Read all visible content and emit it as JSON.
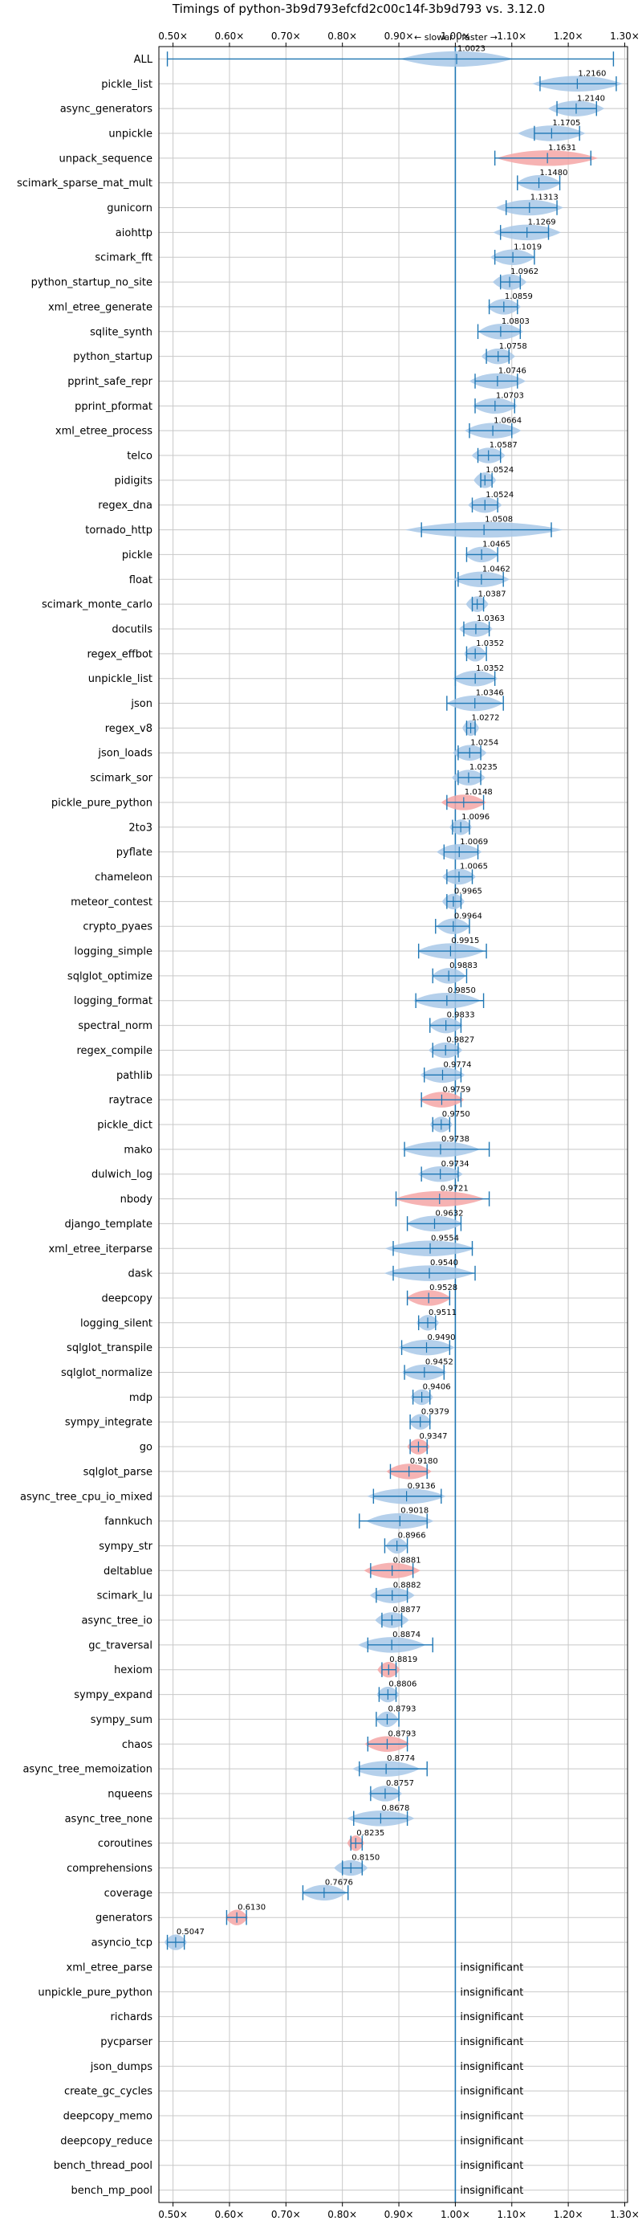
{
  "chart_data": {
    "type": "violin",
    "title": "Timings of python-3b9d793efcfd2c00c14f-3b9d793 vs. 3.12.0",
    "axis_note": "← slower | faster →",
    "xlim": [
      0.475,
      1.305
    ],
    "x_ticks": [
      0.5,
      0.6,
      0.7,
      0.8,
      0.9,
      1.0,
      1.1,
      1.2,
      1.3
    ],
    "x_tick_labels": [
      "0.50×",
      "0.60×",
      "0.70×",
      "0.80×",
      "0.90×",
      "1.00×",
      "1.10×",
      "1.20×",
      "1.30×"
    ],
    "grid": true,
    "colors": {
      "significant": "#a8c8e8",
      "regression": "#f4a6a6",
      "whisker": "#1f77b4",
      "reference": "#1f77b4",
      "grid": "#c8c8c8"
    },
    "insignificant_label": "insignificant",
    "benchmarks": [
      {
        "name": "ALL",
        "value": 1.0023,
        "label": "1.0023",
        "lo": 0.49,
        "hi": 1.28,
        "color": "blue",
        "spread": 0.1
      },
      {
        "name": "pickle_list",
        "value": 1.216,
        "label": "1.2160",
        "lo": 1.15,
        "hi": 1.285,
        "color": "blue",
        "spread": 0.08
      },
      {
        "name": "async_generators",
        "value": 1.214,
        "label": "1.2140",
        "lo": 1.18,
        "hi": 1.25,
        "color": "blue",
        "spread": 0.05
      },
      {
        "name": "unpickle",
        "value": 1.1705,
        "label": "1.1705",
        "lo": 1.14,
        "hi": 1.22,
        "color": "blue",
        "spread": 0.06
      },
      {
        "name": "unpack_sequence",
        "value": 1.1631,
        "label": "1.1631",
        "lo": 1.07,
        "hi": 1.24,
        "color": "red",
        "spread": 0.09
      },
      {
        "name": "scimark_sparse_mat_mult",
        "value": 1.148,
        "label": "1.1480",
        "lo": 1.11,
        "hi": 1.185,
        "color": "blue",
        "spread": 0.04
      },
      {
        "name": "gunicorn",
        "value": 1.1313,
        "label": "1.1313",
        "lo": 1.09,
        "hi": 1.18,
        "color": "blue",
        "spread": 0.06
      },
      {
        "name": "aiohttp",
        "value": 1.1269,
        "label": "1.1269",
        "lo": 1.08,
        "hi": 1.165,
        "color": "blue",
        "spread": 0.06
      },
      {
        "name": "scimark_fft",
        "value": 1.1019,
        "label": "1.1019",
        "lo": 1.07,
        "hi": 1.14,
        "color": "blue",
        "spread": 0.04
      },
      {
        "name": "python_startup_no_site",
        "value": 1.0962,
        "label": "1.0962",
        "lo": 1.08,
        "hi": 1.115,
        "color": "blue",
        "spread": 0.03
      },
      {
        "name": "xml_etree_generate",
        "value": 1.0859,
        "label": "1.0859",
        "lo": 1.06,
        "hi": 1.11,
        "color": "blue",
        "spread": 0.03
      },
      {
        "name": "sqlite_synth",
        "value": 1.0803,
        "label": "1.0803",
        "lo": 1.04,
        "hi": 1.115,
        "color": "blue",
        "spread": 0.04
      },
      {
        "name": "python_startup",
        "value": 1.0758,
        "label": "1.0758",
        "lo": 1.055,
        "hi": 1.095,
        "color": "blue",
        "spread": 0.03
      },
      {
        "name": "pprint_safe_repr",
        "value": 1.0746,
        "label": "1.0746",
        "lo": 1.035,
        "hi": 1.11,
        "color": "blue",
        "spread": 0.05
      },
      {
        "name": "pprint_pformat",
        "value": 1.0703,
        "label": "1.0703",
        "lo": 1.035,
        "hi": 1.105,
        "color": "blue",
        "spread": 0.04
      },
      {
        "name": "xml_etree_process",
        "value": 1.0664,
        "label": "1.0664",
        "lo": 1.025,
        "hi": 1.1,
        "color": "blue",
        "spread": 0.05
      },
      {
        "name": "telco",
        "value": 1.0587,
        "label": "1.0587",
        "lo": 1.04,
        "hi": 1.08,
        "color": "blue",
        "spread": 0.03
      },
      {
        "name": "pidigits",
        "value": 1.0524,
        "label": "1.0524",
        "lo": 1.045,
        "hi": 1.065,
        "color": "blue",
        "spread": 0.02
      },
      {
        "name": "regex_dna",
        "value": 1.0524,
        "label": "1.0524",
        "lo": 1.03,
        "hi": 1.075,
        "color": "blue",
        "spread": 0.03
      },
      {
        "name": "tornado_http",
        "value": 1.0508,
        "label": "1.0508",
        "lo": 0.94,
        "hi": 1.17,
        "color": "blue",
        "spread": 0.14
      },
      {
        "name": "pickle",
        "value": 1.0465,
        "label": "1.0465",
        "lo": 1.02,
        "hi": 1.075,
        "color": "blue",
        "spread": 0.03
      },
      {
        "name": "float",
        "value": 1.0462,
        "label": "1.0462",
        "lo": 1.005,
        "hi": 1.085,
        "color": "blue",
        "spread": 0.05
      },
      {
        "name": "scimark_monte_carlo",
        "value": 1.0387,
        "label": "1.0387",
        "lo": 1.03,
        "hi": 1.05,
        "color": "blue",
        "spread": 0.02
      },
      {
        "name": "docutils",
        "value": 1.0363,
        "label": "1.0363",
        "lo": 1.015,
        "hi": 1.06,
        "color": "blue",
        "spread": 0.03
      },
      {
        "name": "regex_effbot",
        "value": 1.0352,
        "label": "1.0352",
        "lo": 1.02,
        "hi": 1.055,
        "color": "blue",
        "spread": 0.02
      },
      {
        "name": "unpickle_list",
        "value": 1.0352,
        "label": "1.0352",
        "lo": 1.0,
        "hi": 1.07,
        "color": "blue",
        "spread": 0.04
      },
      {
        "name": "json",
        "value": 1.0346,
        "label": "1.0346",
        "lo": 0.985,
        "hi": 1.085,
        "color": "blue",
        "spread": 0.05
      },
      {
        "name": "regex_v8",
        "value": 1.0272,
        "label": "1.0272",
        "lo": 1.02,
        "hi": 1.035,
        "color": "blue",
        "spread": 0.015
      },
      {
        "name": "json_loads",
        "value": 1.0254,
        "label": "1.0254",
        "lo": 1.005,
        "hi": 1.045,
        "color": "blue",
        "spread": 0.03
      },
      {
        "name": "scimark_sor",
        "value": 1.0235,
        "label": "1.0235",
        "lo": 1.005,
        "hi": 1.045,
        "color": "blue",
        "spread": 0.03
      },
      {
        "name": "pickle_pure_python",
        "value": 1.0148,
        "label": "1.0148",
        "lo": 0.985,
        "hi": 1.05,
        "color": "red",
        "spread": 0.04
      },
      {
        "name": "2to3",
        "value": 1.0096,
        "label": "1.0096",
        "lo": 0.995,
        "hi": 1.025,
        "color": "blue",
        "spread": 0.02
      },
      {
        "name": "pyflate",
        "value": 1.0069,
        "label": "1.0069",
        "lo": 0.98,
        "hi": 1.04,
        "color": "blue",
        "spread": 0.04
      },
      {
        "name": "chameleon",
        "value": 1.0065,
        "label": "1.0065",
        "lo": 0.985,
        "hi": 1.03,
        "color": "blue",
        "spread": 0.03
      },
      {
        "name": "meteor_contest",
        "value": 0.9965,
        "label": "0.9965",
        "lo": 0.985,
        "hi": 1.01,
        "color": "blue",
        "spread": 0.02
      },
      {
        "name": "crypto_pyaes",
        "value": 0.9964,
        "label": "0.9964",
        "lo": 0.965,
        "hi": 1.025,
        "color": "blue",
        "spread": 0.03
      },
      {
        "name": "logging_simple",
        "value": 0.9915,
        "label": "0.9915",
        "lo": 0.935,
        "hi": 1.055,
        "color": "blue",
        "spread": 0.06
      },
      {
        "name": "sqlglot_optimize",
        "value": 0.9883,
        "label": "0.9883",
        "lo": 0.96,
        "hi": 1.02,
        "color": "blue",
        "spread": 0.03
      },
      {
        "name": "logging_format",
        "value": 0.985,
        "label": "0.9850",
        "lo": 0.93,
        "hi": 1.05,
        "color": "blue",
        "spread": 0.06
      },
      {
        "name": "spectral_norm",
        "value": 0.9833,
        "label": "0.9833",
        "lo": 0.955,
        "hi": 1.01,
        "color": "blue",
        "spread": 0.03
      },
      {
        "name": "regex_compile",
        "value": 0.9827,
        "label": "0.9827",
        "lo": 0.96,
        "hi": 1.005,
        "color": "blue",
        "spread": 0.03
      },
      {
        "name": "pathlib",
        "value": 0.9774,
        "label": "0.9774",
        "lo": 0.945,
        "hi": 1.01,
        "color": "blue",
        "spread": 0.04
      },
      {
        "name": "raytrace",
        "value": 0.9759,
        "label": "0.9759",
        "lo": 0.94,
        "hi": 1.01,
        "color": "red",
        "spread": 0.04
      },
      {
        "name": "pickle_dict",
        "value": 0.975,
        "label": "0.9750",
        "lo": 0.96,
        "hi": 0.99,
        "color": "blue",
        "spread": 0.02
      },
      {
        "name": "mako",
        "value": 0.9738,
        "label": "0.9738",
        "lo": 0.91,
        "hi": 1.06,
        "color": "blue",
        "spread": 0.07
      },
      {
        "name": "dulwich_log",
        "value": 0.9734,
        "label": "0.9734",
        "lo": 0.94,
        "hi": 1.005,
        "color": "blue",
        "spread": 0.04
      },
      {
        "name": "nbody",
        "value": 0.9721,
        "label": "0.9721",
        "lo": 0.895,
        "hi": 1.06,
        "color": "red",
        "spread": 0.08
      },
      {
        "name": "django_template",
        "value": 0.9632,
        "label": "0.9632",
        "lo": 0.915,
        "hi": 1.01,
        "color": "blue",
        "spread": 0.05
      },
      {
        "name": "xml_etree_iterparse",
        "value": 0.9554,
        "label": "0.9554",
        "lo": 0.89,
        "hi": 1.03,
        "color": "blue",
        "spread": 0.08
      },
      {
        "name": "dask",
        "value": 0.954,
        "label": "0.9540",
        "lo": 0.89,
        "hi": 1.035,
        "color": "blue",
        "spread": 0.08
      },
      {
        "name": "deepcopy",
        "value": 0.9528,
        "label": "0.9528",
        "lo": 0.915,
        "hi": 0.99,
        "color": "red",
        "spread": 0.04
      },
      {
        "name": "logging_silent",
        "value": 0.9511,
        "label": "0.9511",
        "lo": 0.935,
        "hi": 0.965,
        "color": "blue",
        "spread": 0.02
      },
      {
        "name": "sqlglot_transpile",
        "value": 0.949,
        "label": "0.9490",
        "lo": 0.905,
        "hi": 0.99,
        "color": "blue",
        "spread": 0.05
      },
      {
        "name": "sqlglot_normalize",
        "value": 0.9452,
        "label": "0.9452",
        "lo": 0.91,
        "hi": 0.98,
        "color": "blue",
        "spread": 0.04
      },
      {
        "name": "mdp",
        "value": 0.9406,
        "label": "0.9406",
        "lo": 0.925,
        "hi": 0.955,
        "color": "blue",
        "spread": 0.02
      },
      {
        "name": "sympy_integrate",
        "value": 0.9379,
        "label": "0.9379",
        "lo": 0.92,
        "hi": 0.955,
        "color": "blue",
        "spread": 0.02
      },
      {
        "name": "go",
        "value": 0.9347,
        "label": "0.9347",
        "lo": 0.92,
        "hi": 0.95,
        "color": "red",
        "spread": 0.02
      },
      {
        "name": "sqlglot_parse",
        "value": 0.918,
        "label": "0.9180",
        "lo": 0.885,
        "hi": 0.95,
        "color": "red",
        "spread": 0.04
      },
      {
        "name": "async_tree_cpu_io_mixed",
        "value": 0.9136,
        "label": "0.9136",
        "lo": 0.855,
        "hi": 0.975,
        "color": "blue",
        "spread": 0.07
      },
      {
        "name": "fannkuch",
        "value": 0.9018,
        "label": "0.9018",
        "lo": 0.83,
        "hi": 0.95,
        "color": "blue",
        "spread": 0.06
      },
      {
        "name": "sympy_str",
        "value": 0.8966,
        "label": "0.8966",
        "lo": 0.875,
        "hi": 0.915,
        "color": "blue",
        "spread": 0.02
      },
      {
        "name": "deltablue",
        "value": 0.8881,
        "label": "0.8881",
        "lo": 0.85,
        "hi": 0.925,
        "color": "red",
        "spread": 0.05
      },
      {
        "name": "scimark_lu",
        "value": 0.8882,
        "label": "0.8882",
        "lo": 0.86,
        "hi": 0.915,
        "color": "blue",
        "spread": 0.04
      },
      {
        "name": "async_tree_io",
        "value": 0.8877,
        "label": "0.8877",
        "lo": 0.87,
        "hi": 0.905,
        "color": "blue",
        "spread": 0.03
      },
      {
        "name": "gc_traversal",
        "value": 0.8874,
        "label": "0.8874",
        "lo": 0.845,
        "hi": 0.96,
        "color": "blue",
        "spread": 0.06
      },
      {
        "name": "hexiom",
        "value": 0.8819,
        "label": "0.8819",
        "lo": 0.87,
        "hi": 0.895,
        "color": "red",
        "spread": 0.02
      },
      {
        "name": "sympy_expand",
        "value": 0.8806,
        "label": "0.8806",
        "lo": 0.865,
        "hi": 0.895,
        "color": "blue",
        "spread": 0.02
      },
      {
        "name": "sympy_sum",
        "value": 0.8793,
        "label": "0.8793",
        "lo": 0.86,
        "hi": 0.9,
        "color": "blue",
        "spread": 0.02
      },
      {
        "name": "chaos",
        "value": 0.8793,
        "label": "0.8793",
        "lo": 0.845,
        "hi": 0.915,
        "color": "red",
        "spread": 0.04
      },
      {
        "name": "async_tree_memoization",
        "value": 0.8774,
        "label": "0.8774",
        "lo": 0.83,
        "hi": 0.95,
        "color": "blue",
        "spread": 0.06
      },
      {
        "name": "nqueens",
        "value": 0.8757,
        "label": "0.8757",
        "lo": 0.85,
        "hi": 0.9,
        "color": "blue",
        "spread": 0.03
      },
      {
        "name": "async_tree_none",
        "value": 0.8678,
        "label": "0.8678",
        "lo": 0.82,
        "hi": 0.915,
        "color": "blue",
        "spread": 0.06
      },
      {
        "name": "coroutines",
        "value": 0.8235,
        "label": "0.8235",
        "lo": 0.815,
        "hi": 0.835,
        "color": "red",
        "spread": 0.015
      },
      {
        "name": "comprehensions",
        "value": 0.815,
        "label": "0.8150",
        "lo": 0.8,
        "hi": 0.835,
        "color": "blue",
        "spread": 0.03
      },
      {
        "name": "coverage",
        "value": 0.7676,
        "label": "0.7676",
        "lo": 0.73,
        "hi": 0.81,
        "color": "blue",
        "spread": 0.04
      },
      {
        "name": "generators",
        "value": 0.613,
        "label": "0.6130",
        "lo": 0.595,
        "hi": 0.63,
        "color": "red",
        "spread": 0.02
      },
      {
        "name": "asyncio_tcp",
        "value": 0.5047,
        "label": "0.5047",
        "lo": 0.49,
        "hi": 0.52,
        "color": "blue",
        "spread": 0.02
      },
      {
        "name": "xml_etree_parse",
        "insignificant": true
      },
      {
        "name": "unpickle_pure_python",
        "insignificant": true
      },
      {
        "name": "richards",
        "insignificant": true
      },
      {
        "name": "pycparser",
        "insignificant": true
      },
      {
        "name": "json_dumps",
        "insignificant": true
      },
      {
        "name": "create_gc_cycles",
        "insignificant": true
      },
      {
        "name": "deepcopy_memo",
        "insignificant": true
      },
      {
        "name": "deepcopy_reduce",
        "insignificant": true
      },
      {
        "name": "bench_thread_pool",
        "insignificant": true
      },
      {
        "name": "bench_mp_pool",
        "insignificant": true
      }
    ]
  }
}
